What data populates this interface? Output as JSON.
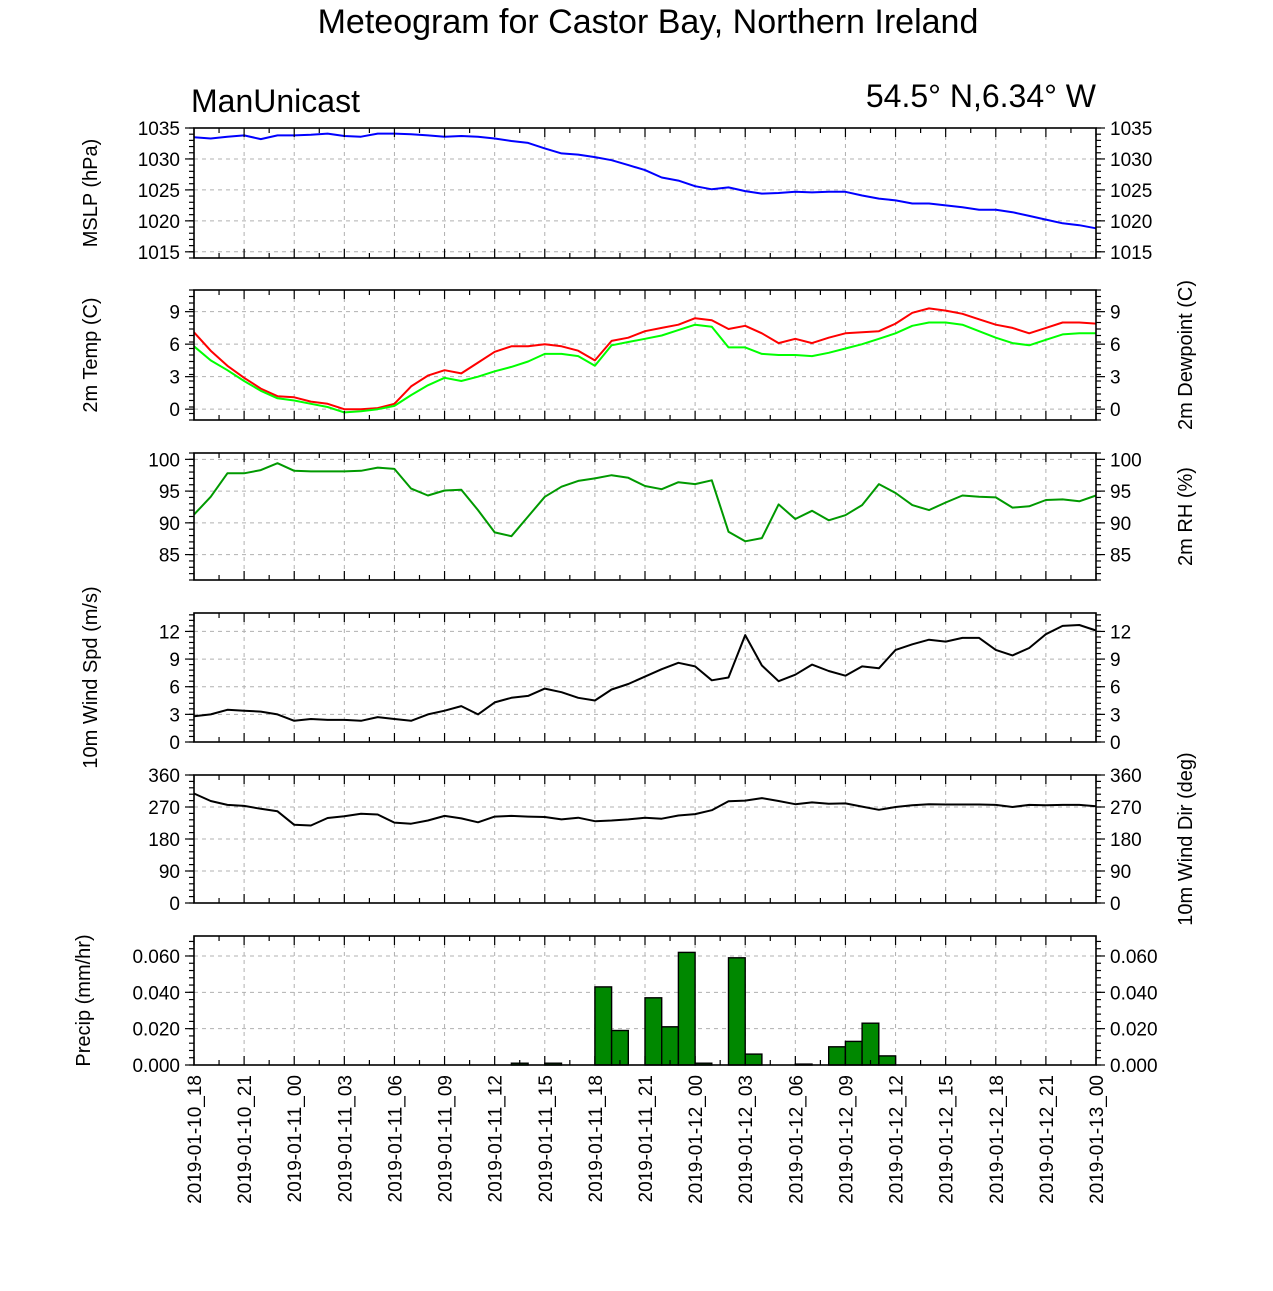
{
  "header": {
    "title": "Meteogram for Castor Bay, Northern Ireland",
    "model": "ManUnicast",
    "location": "54.5° N,6.34° W"
  },
  "time_axis": {
    "start": "2019-01-10_18",
    "end": "2019-01-13_00",
    "step_hours": 3,
    "tick_labels": [
      "2019-01-10_18",
      "2019-01-10_21",
      "2019-01-11_00",
      "2019-01-11_03",
      "2019-01-11_06",
      "2019-01-11_09",
      "2019-01-11_12",
      "2019-01-11_15",
      "2019-01-11_18",
      "2019-01-11_21",
      "2019-01-12_00",
      "2019-01-12_03",
      "2019-01-12_06",
      "2019-01-12_09",
      "2019-01-12_12",
      "2019-01-12_15",
      "2019-01-12_18",
      "2019-01-12_21",
      "2019-01-13_00"
    ]
  },
  "chart_data": [
    {
      "type": "line",
      "ylabel": "MSLP (hPa)",
      "ylabel_right": "",
      "ylim": [
        1014,
        1035
      ],
      "yticks": [
        1015,
        1020,
        1025,
        1030,
        1035
      ],
      "ytick_labels": [
        "1015",
        "1020",
        "1025",
        "1030",
        "1035"
      ],
      "series": [
        {
          "color": "#0000ff",
          "values": [
            1033.5,
            1033.3,
            1033.6,
            1033.8,
            1033.2,
            1033.8,
            1033.8,
            1033.9,
            1034.1,
            1033.7,
            1033.6,
            1034.1,
            1034.1,
            1034.0,
            1033.8,
            1033.6,
            1033.7,
            1033.6,
            1033.3,
            1032.9,
            1032.6,
            1031.7,
            1030.9,
            1030.7,
            1030.3,
            1029.8,
            1029.0,
            1028.2,
            1027.0,
            1026.5,
            1025.6,
            1025.1,
            1025.4,
            1024.8,
            1024.4,
            1024.5,
            1024.7,
            1024.6,
            1024.7,
            1024.7,
            1024.1,
            1023.6,
            1023.3,
            1022.8,
            1022.8,
            1022.5,
            1022.2,
            1021.8,
            1021.8,
            1021.4,
            1020.8,
            1020.2,
            1019.6,
            1019.3,
            1018.8
          ]
        }
      ]
    },
    {
      "type": "line",
      "ylabel": "2m Temp (C)",
      "ylabel_right": "2m Dewpoint (C)",
      "ylim": [
        -1,
        11
      ],
      "yticks": [
        0,
        3,
        6,
        9
      ],
      "ytick_labels": [
        "0",
        "3",
        "6",
        "9"
      ],
      "series": [
        {
          "color": "#ff0000",
          "values": [
            7.1,
            5.4,
            4.0,
            2.9,
            1.9,
            1.2,
            1.1,
            0.7,
            0.5,
            0.0,
            0.0,
            0.1,
            0.5,
            2.1,
            3.1,
            3.6,
            3.3,
            4.3,
            5.3,
            5.8,
            5.8,
            6.0,
            5.8,
            5.4,
            4.5,
            6.3,
            6.6,
            7.2,
            7.5,
            7.8,
            8.4,
            8.2,
            7.4,
            7.7,
            7.0,
            6.1,
            6.5,
            6.1,
            6.6,
            7.0,
            7.1,
            7.2,
            7.9,
            8.9,
            9.3,
            9.1,
            8.8,
            8.3,
            7.8,
            7.5,
            7.0,
            7.5,
            8.0,
            8.0,
            7.9
          ]
        },
        {
          "color": "#00ff00",
          "values": [
            5.8,
            4.5,
            3.6,
            2.6,
            1.7,
            1.0,
            0.8,
            0.5,
            0.2,
            -0.3,
            -0.2,
            0.0,
            0.3,
            1.3,
            2.2,
            2.9,
            2.6,
            3.0,
            3.5,
            3.9,
            4.4,
            5.1,
            5.1,
            4.9,
            4.0,
            5.9,
            6.2,
            6.5,
            6.8,
            7.3,
            7.8,
            7.6,
            5.7,
            5.7,
            5.1,
            5.0,
            5.0,
            4.9,
            5.2,
            5.6,
            6.0,
            6.5,
            7.0,
            7.7,
            8.0,
            8.0,
            7.8,
            7.2,
            6.6,
            6.1,
            5.9,
            6.4,
            6.9,
            7.0,
            7.0
          ]
        }
      ]
    },
    {
      "type": "line",
      "ylabel": "",
      "ylabel_right": "2m RH (%)",
      "ylim": [
        81,
        101
      ],
      "yticks": [
        85,
        90,
        95,
        100
      ],
      "ytick_labels": [
        "85",
        "90",
        "95",
        "100"
      ],
      "series": [
        {
          "color": "#009900",
          "values": [
            91.3,
            94.1,
            97.8,
            97.8,
            98.3,
            99.4,
            98.2,
            98.1,
            98.1,
            98.1,
            98.2,
            98.7,
            98.5,
            95.4,
            94.3,
            95.1,
            95.2,
            92.0,
            88.5,
            87.9,
            91.0,
            94.1,
            95.7,
            96.6,
            97.0,
            97.5,
            97.1,
            95.8,
            95.3,
            96.4,
            96.1,
            96.7,
            88.6,
            87.1,
            87.6,
            92.9,
            90.6,
            91.9,
            90.4,
            91.2,
            92.8,
            96.1,
            94.7,
            92.8,
            92.0,
            93.2,
            94.3,
            94.1,
            94.0,
            92.4,
            92.6,
            93.6,
            93.7,
            93.4,
            94.3
          ]
        }
      ]
    },
    {
      "type": "line",
      "ylabel": "10m Wind Spd (m/s)",
      "ylabel_right": "",
      "ylim": [
        0,
        14
      ],
      "yticks": [
        0,
        3,
        6,
        9,
        12
      ],
      "ytick_labels": [
        "0",
        "3",
        "6",
        "9",
        "12"
      ],
      "series": [
        {
          "color": "#000000",
          "values": [
            2.8,
            3.0,
            3.5,
            3.4,
            3.3,
            3.0,
            2.3,
            2.5,
            2.4,
            2.4,
            2.3,
            2.7,
            2.5,
            2.3,
            3.0,
            3.4,
            3.9,
            3.0,
            4.3,
            4.8,
            5.0,
            5.8,
            5.4,
            4.8,
            4.5,
            5.7,
            6.3,
            7.1,
            7.9,
            8.6,
            8.2,
            6.7,
            7.0,
            11.6,
            8.3,
            6.6,
            7.3,
            8.4,
            7.7,
            7.2,
            8.2,
            8.0,
            10.0,
            10.6,
            11.1,
            10.9,
            11.3,
            11.3,
            10.0,
            9.4,
            10.2,
            11.7,
            12.6,
            12.7,
            12.1
          ]
        }
      ]
    },
    {
      "type": "line",
      "ylabel": "",
      "ylabel_right": "10m Wind Dir (deg)",
      "ylim": [
        0,
        360
      ],
      "yticks": [
        0,
        90,
        180,
        270,
        360
      ],
      "ytick_labels": [
        "0",
        "90",
        "180",
        "270",
        "360"
      ],
      "series": [
        {
          "color": "#000000",
          "values": [
            308,
            287,
            276,
            273,
            265,
            258,
            220,
            218,
            239,
            244,
            251,
            249,
            226,
            223,
            232,
            245,
            238,
            227,
            243,
            245,
            243,
            242,
            235,
            240,
            230,
            232,
            235,
            240,
            237,
            246,
            250,
            261,
            286,
            288,
            295,
            287,
            278,
            283,
            279,
            280,
            271,
            262,
            270,
            275,
            278,
            277,
            277,
            277,
            276,
            270,
            276,
            275,
            276,
            276,
            272
          ]
        }
      ]
    },
    {
      "type": "bar",
      "ylabel": "Precip (mm/hr)",
      "ylabel_right": "",
      "ylim": [
        0,
        0.071
      ],
      "yticks": [
        0.0,
        0.02,
        0.04,
        0.06
      ],
      "ytick_labels": [
        "0.000",
        "0.020",
        "0.040",
        "0.060"
      ],
      "bar_color": "#008800",
      "values": [
        0,
        0,
        0,
        0,
        0,
        0,
        0,
        0,
        0,
        0,
        0,
        0,
        0,
        0,
        0,
        0,
        0,
        0,
        0,
        0.001,
        0,
        0.001,
        0,
        0,
        0.043,
        0.019,
        0,
        0.037,
        0.021,
        0.062,
        0.001,
        0,
        0.059,
        0.006,
        0,
        0,
        0.0005,
        0,
        0.01,
        0.013,
        0.023,
        0.005,
        0,
        0,
        0,
        0,
        0,
        0,
        0,
        0,
        0,
        0,
        0,
        0
      ]
    }
  ]
}
